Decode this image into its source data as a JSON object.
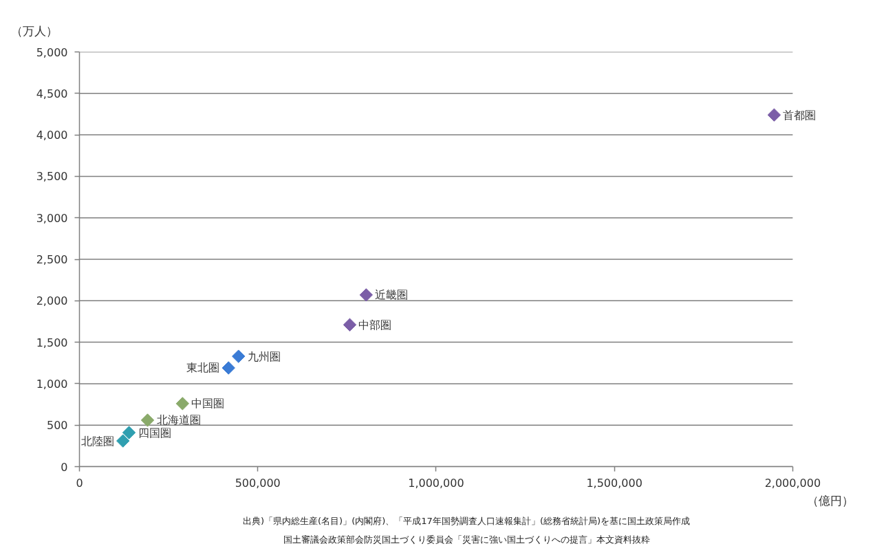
{
  "chart_data": {
    "type": "scatter",
    "xlabel": "（億円）",
    "ylabel": "（万人）",
    "xlim": [
      0,
      2000000
    ],
    "ylim": [
      0,
      5000
    ],
    "xticks": [
      0,
      {
        "value": 500000,
        "label": "500,000"
      },
      {
        "value": 1000000,
        "label": "1,000,000"
      },
      {
        "value": 1500000,
        "label": "1,500,000"
      },
      {
        "value": 2000000,
        "label": "2,000,000"
      }
    ],
    "yticks": [
      0,
      500,
      {
        "value": 1000,
        "label": "1,000"
      },
      {
        "value": 1500,
        "label": "1,500"
      },
      {
        "value": 2000,
        "label": "2,000"
      },
      {
        "value": 2500,
        "label": "2,500"
      },
      {
        "value": 3000,
        "label": "3,000"
      },
      {
        "value": 3500,
        "label": "3,500"
      },
      {
        "value": 4000,
        "label": "4,000"
      },
      {
        "value": 4500,
        "label": "4,500"
      },
      {
        "value": 5000,
        "label": "5,000"
      }
    ],
    "grid": "y",
    "marker": "diamond",
    "series": [
      {
        "color": "#7b5ea7",
        "x": [
          1948000,
          804000,
          758000
        ],
        "values": [
          4240,
          2070,
          1710
        ]
      },
      {
        "color": "#3a7bd5",
        "x": [
          446000,
          418000
        ],
        "values": [
          1330,
          1190
        ]
      },
      {
        "color": "#8aaa6a",
        "x": [
          289000,
          191000
        ],
        "values": [
          760,
          560
        ]
      },
      {
        "color": "#2f9fb0",
        "x": [
          139000,
          122000
        ],
        "values": [
          410,
          310
        ]
      }
    ],
    "annotations": [
      {
        "text": "首都圏",
        "x": 1948000,
        "y": 4240
      },
      {
        "text": "近畿圏",
        "x": 804000,
        "y": 2070
      },
      {
        "text": "中部圏",
        "x": 758000,
        "y": 1710
      },
      {
        "text": "九州圏",
        "x": 446000,
        "y": 1330
      },
      {
        "text": "東北圏",
        "x": 418000,
        "y": 1190
      },
      {
        "text": "中国圏",
        "x": 289000,
        "y": 760
      },
      {
        "text": "北海道圏",
        "x": 191000,
        "y": 560
      },
      {
        "text": "北陸圏",
        "x": 122000,
        "y": 310
      },
      {
        "text": "四国圏",
        "x": 139000,
        "y": 410
      },
      "出典)「県内総生産(名目)」(内閣府)、「平成17年国勢調査人口速報集計」(総務省統計局)を基に国土政策局作成",
      "国土審議会政策部会防災国土づくり委員会「災害に強い国土づくりへの提言」本文資料抜粋"
    ]
  }
}
